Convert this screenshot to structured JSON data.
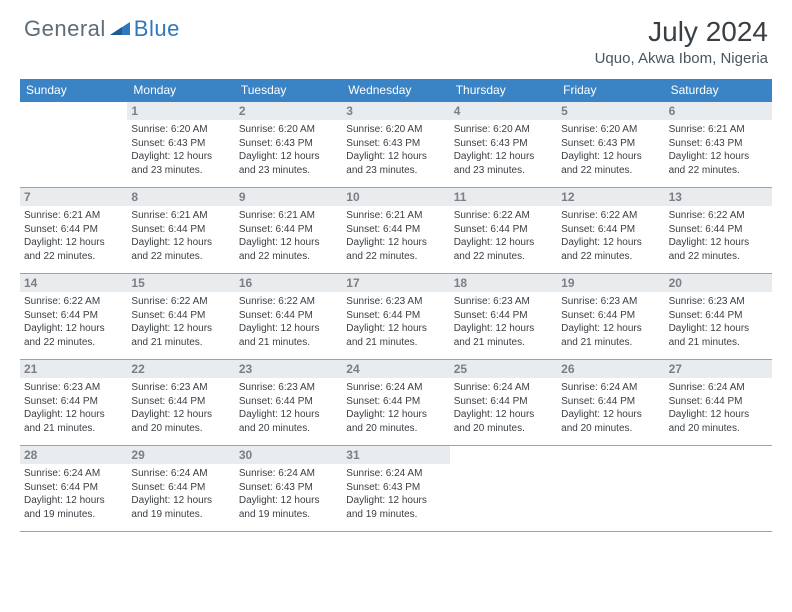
{
  "brand": {
    "first": "General",
    "second": "Blue"
  },
  "title": "July 2024",
  "location": "Uquo, Akwa Ibom, Nigeria",
  "colors": {
    "header_band": "#3a84c5",
    "daynum_band": "#e9ecef",
    "week_divider": "#8aa7c2",
    "text": "#3a3f44",
    "muted": "#7b7f83",
    "logo_grey": "#5f6b77",
    "logo_blue": "#2f78bd"
  },
  "font_sizes": {
    "title_pt": 28,
    "location_pt": 15,
    "dow_pt": 12,
    "daynum_pt": 12,
    "body_pt": 10
  },
  "dow": [
    "Sunday",
    "Monday",
    "Tuesday",
    "Wednesday",
    "Thursday",
    "Friday",
    "Saturday"
  ],
  "weeks": [
    [
      null,
      {
        "n": "1",
        "sr": "6:20 AM",
        "ss": "6:43 PM",
        "dl": "12 hours and 23 minutes."
      },
      {
        "n": "2",
        "sr": "6:20 AM",
        "ss": "6:43 PM",
        "dl": "12 hours and 23 minutes."
      },
      {
        "n": "3",
        "sr": "6:20 AM",
        "ss": "6:43 PM",
        "dl": "12 hours and 23 minutes."
      },
      {
        "n": "4",
        "sr": "6:20 AM",
        "ss": "6:43 PM",
        "dl": "12 hours and 23 minutes."
      },
      {
        "n": "5",
        "sr": "6:20 AM",
        "ss": "6:43 PM",
        "dl": "12 hours and 22 minutes."
      },
      {
        "n": "6",
        "sr": "6:21 AM",
        "ss": "6:43 PM",
        "dl": "12 hours and 22 minutes."
      }
    ],
    [
      {
        "n": "7",
        "sr": "6:21 AM",
        "ss": "6:44 PM",
        "dl": "12 hours and 22 minutes."
      },
      {
        "n": "8",
        "sr": "6:21 AM",
        "ss": "6:44 PM",
        "dl": "12 hours and 22 minutes."
      },
      {
        "n": "9",
        "sr": "6:21 AM",
        "ss": "6:44 PM",
        "dl": "12 hours and 22 minutes."
      },
      {
        "n": "10",
        "sr": "6:21 AM",
        "ss": "6:44 PM",
        "dl": "12 hours and 22 minutes."
      },
      {
        "n": "11",
        "sr": "6:22 AM",
        "ss": "6:44 PM",
        "dl": "12 hours and 22 minutes."
      },
      {
        "n": "12",
        "sr": "6:22 AM",
        "ss": "6:44 PM",
        "dl": "12 hours and 22 minutes."
      },
      {
        "n": "13",
        "sr": "6:22 AM",
        "ss": "6:44 PM",
        "dl": "12 hours and 22 minutes."
      }
    ],
    [
      {
        "n": "14",
        "sr": "6:22 AM",
        "ss": "6:44 PM",
        "dl": "12 hours and 22 minutes."
      },
      {
        "n": "15",
        "sr": "6:22 AM",
        "ss": "6:44 PM",
        "dl": "12 hours and 21 minutes."
      },
      {
        "n": "16",
        "sr": "6:22 AM",
        "ss": "6:44 PM",
        "dl": "12 hours and 21 minutes."
      },
      {
        "n": "17",
        "sr": "6:23 AM",
        "ss": "6:44 PM",
        "dl": "12 hours and 21 minutes."
      },
      {
        "n": "18",
        "sr": "6:23 AM",
        "ss": "6:44 PM",
        "dl": "12 hours and 21 minutes."
      },
      {
        "n": "19",
        "sr": "6:23 AM",
        "ss": "6:44 PM",
        "dl": "12 hours and 21 minutes."
      },
      {
        "n": "20",
        "sr": "6:23 AM",
        "ss": "6:44 PM",
        "dl": "12 hours and 21 minutes."
      }
    ],
    [
      {
        "n": "21",
        "sr": "6:23 AM",
        "ss": "6:44 PM",
        "dl": "12 hours and 21 minutes."
      },
      {
        "n": "22",
        "sr": "6:23 AM",
        "ss": "6:44 PM",
        "dl": "12 hours and 20 minutes."
      },
      {
        "n": "23",
        "sr": "6:23 AM",
        "ss": "6:44 PM",
        "dl": "12 hours and 20 minutes."
      },
      {
        "n": "24",
        "sr": "6:24 AM",
        "ss": "6:44 PM",
        "dl": "12 hours and 20 minutes."
      },
      {
        "n": "25",
        "sr": "6:24 AM",
        "ss": "6:44 PM",
        "dl": "12 hours and 20 minutes."
      },
      {
        "n": "26",
        "sr": "6:24 AM",
        "ss": "6:44 PM",
        "dl": "12 hours and 20 minutes."
      },
      {
        "n": "27",
        "sr": "6:24 AM",
        "ss": "6:44 PM",
        "dl": "12 hours and 20 minutes."
      }
    ],
    [
      {
        "n": "28",
        "sr": "6:24 AM",
        "ss": "6:44 PM",
        "dl": "12 hours and 19 minutes."
      },
      {
        "n": "29",
        "sr": "6:24 AM",
        "ss": "6:44 PM",
        "dl": "12 hours and 19 minutes."
      },
      {
        "n": "30",
        "sr": "6:24 AM",
        "ss": "6:43 PM",
        "dl": "12 hours and 19 minutes."
      },
      {
        "n": "31",
        "sr": "6:24 AM",
        "ss": "6:43 PM",
        "dl": "12 hours and 19 minutes."
      },
      null,
      null,
      null
    ]
  ],
  "labels": {
    "sunrise": "Sunrise:",
    "sunset": "Sunset:",
    "daylight": "Daylight:"
  }
}
